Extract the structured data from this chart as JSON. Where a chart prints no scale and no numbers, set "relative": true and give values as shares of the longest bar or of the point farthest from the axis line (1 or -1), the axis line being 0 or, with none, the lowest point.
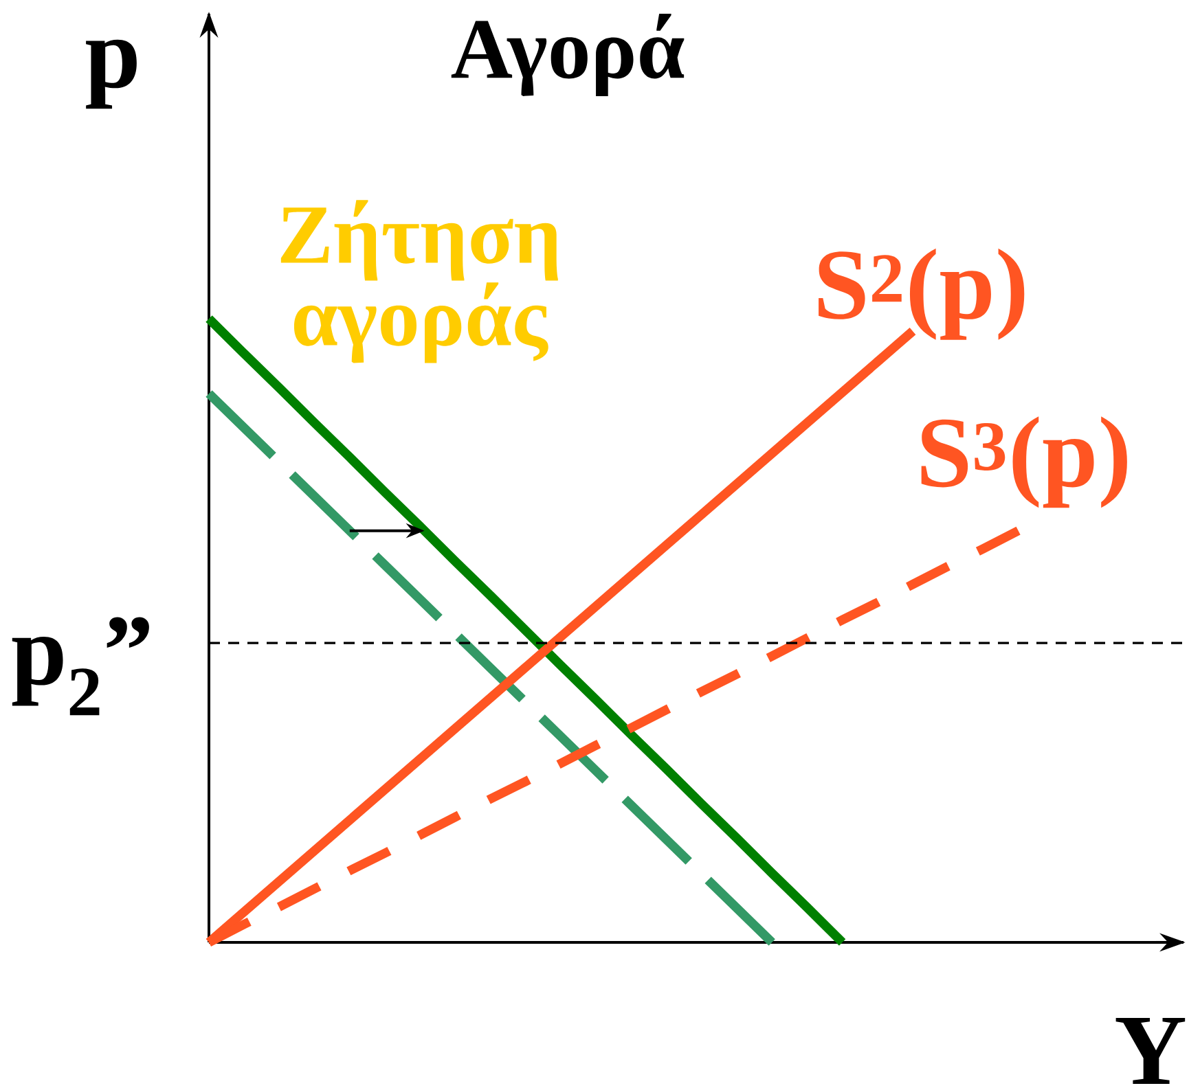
{
  "chart_data": {
    "type": "line",
    "title": "Αγορά",
    "xlabel": "Y",
    "ylabel": "p",
    "relative": true,
    "categories": [
      null,
      null,
      null,
      null,
      null,
      null,
      null,
      null,
      null,
      null,
      null,
      null,
      null,
      null,
      null,
      null,
      null,
      null,
      null,
      null,
      null,
      null,
      null,
      null
    ],
    "series": [
      {
        "color": "#008000",
        "line_style": "solid",
        "values": [
          1,
          0.944,
          0.889,
          0.833,
          0.778,
          0.722,
          0.667,
          0.611,
          0.556,
          0.5,
          0.444,
          0.389,
          0.333,
          0.278,
          0.222,
          0.167,
          0.111,
          0.056,
          0,
          null,
          null,
          null,
          null,
          null
        ]
      },
      {
        "color": "#339966",
        "line_style": "dashed",
        "values": [
          0.88,
          0.825,
          0.77,
          0.715,
          0.66,
          0.605,
          0.55,
          0.495,
          0.44,
          0.385,
          0.33,
          0.275,
          0.22,
          0.165,
          0.11,
          0.055,
          0,
          null,
          null,
          null,
          null,
          null,
          null,
          null
        ]
      },
      {
        "name": "S$^{2}$(p)",
        "color": "#ff5522",
        "line_style": "solid",
        "values": [
          0,
          0.049,
          0.098,
          0.147,
          0.196,
          0.245,
          0.294,
          0.343,
          0.392,
          0.441,
          0.49,
          0.539,
          0.588,
          0.637,
          0.686,
          0.735,
          0.784,
          0.833,
          0.882,
          0.931,
          0.98,
          null,
          null,
          null
        ]
      },
      {
        "name": "S$^{3}$(p)",
        "color": "#ff5522",
        "line_style": "dashed",
        "values": [
          0,
          0.029,
          0.057,
          0.086,
          0.115,
          0.143,
          0.172,
          0.201,
          0.23,
          0.258,
          0.287,
          0.316,
          0.344,
          0.373,
          0.402,
          0.43,
          0.459,
          0.488,
          0.517,
          0.545,
          0.574,
          0.603,
          0.631,
          0.66
        ]
      }
    ],
    "ref_lines": [
      {
        "axis": "y",
        "value": 0.48,
        "label": "p$_{2}$”",
        "color": "#000000",
        "line_style": "dashed"
      }
    ],
    "annotations": [
      "Ζήτηση αγοράς"
    ]
  }
}
